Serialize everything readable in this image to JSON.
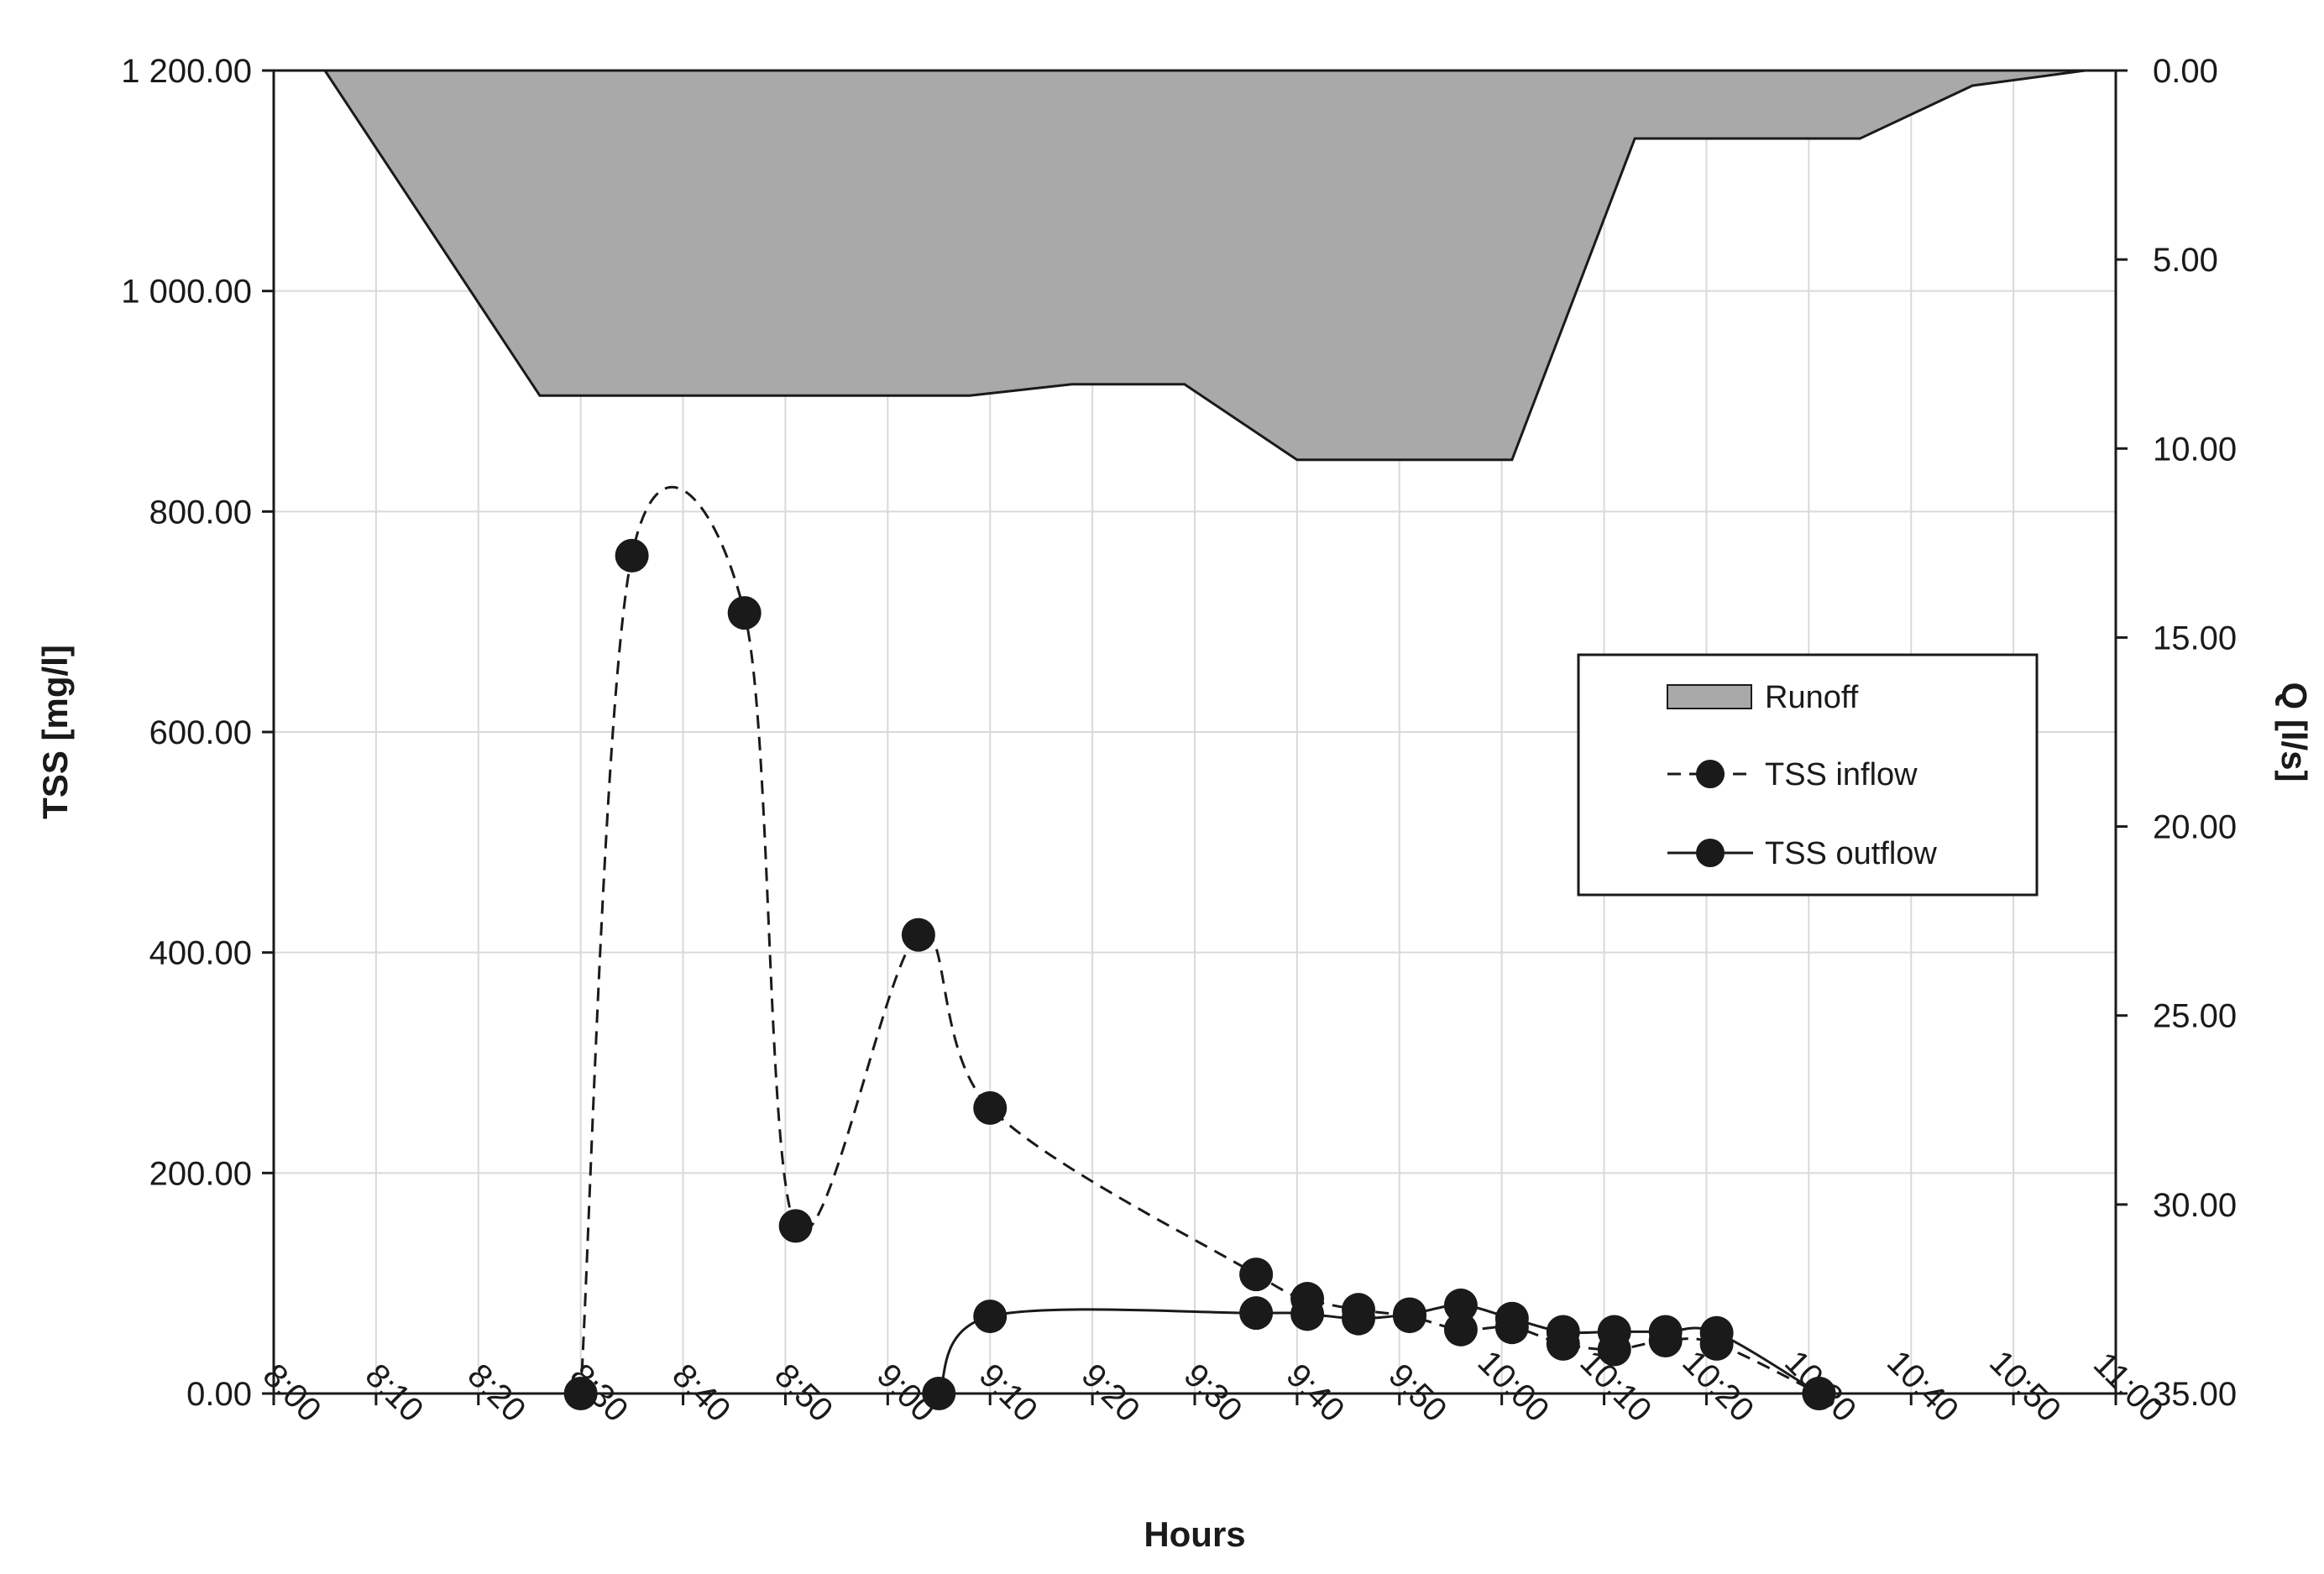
{
  "chart_data": {
    "type": "area+line",
    "title": "",
    "xlabel": "Hours",
    "ylabel": "TSS [mg/l]",
    "y2label": "Q [l/s]",
    "x_ticks": [
      "8:00",
      "8:10",
      "8:20",
      "8:30",
      "8:40",
      "8:50",
      "9:00",
      "9:10",
      "9:20",
      "9:30",
      "9:40",
      "9:50",
      "10:00",
      "10:10",
      "10:20",
      "10:30",
      "10:40",
      "10:50",
      "11:00"
    ],
    "xlim_minutes": [
      0,
      180
    ],
    "ylim": [
      0,
      1200
    ],
    "y_ticks": [
      "0.00",
      "200.00",
      "400.00",
      "600.00",
      "800.00",
      "1 000.00",
      "1 200.00"
    ],
    "y2lim": [
      0,
      35
    ],
    "y2_inverted": true,
    "y2_ticks": [
      "0.00",
      "5.00",
      "10.00",
      "15.00",
      "20.00",
      "25.00",
      "30.00",
      "35.00"
    ],
    "grid": true,
    "legend_position": "center-right",
    "colors": {
      "runoff_fill": "#a9a9a9",
      "line": "#1a1a1a",
      "marker": "#1a1a1a",
      "grid": "#d9d9d9"
    },
    "series": [
      {
        "name": "Runoff",
        "kind": "area",
        "axis": "y2",
        "x": [
          "8:05",
          "8:26",
          "8:47",
          "9:08",
          "9:18",
          "9:29",
          "9:40",
          "10:01",
          "10:13",
          "10:35",
          "10:46",
          "10:57",
          "11:00"
        ],
        "values": [
          0.0,
          8.6,
          8.6,
          8.6,
          8.3,
          8.3,
          10.3,
          10.3,
          1.8,
          1.8,
          0.4,
          0.0,
          0.0
        ]
      },
      {
        "name": "TSS inflow",
        "kind": "line",
        "style": "dashed",
        "axis": "y",
        "x": [
          "8:30",
          "8:35",
          "8:46",
          "8:51",
          "9:03",
          "9:10",
          "9:36",
          "9:41",
          "9:46",
          "9:51",
          "9:56",
          "10:01",
          "10:06",
          "10:11",
          "10:16",
          "10:21",
          "10:31"
        ],
        "values": [
          0,
          760,
          708,
          152,
          416,
          259,
          108,
          86,
          76,
          70,
          58,
          60,
          45,
          40,
          48,
          45,
          0
        ]
      },
      {
        "name": "TSS outflow",
        "kind": "line",
        "style": "solid",
        "axis": "y",
        "x": [
          "9:05",
          "9:10",
          "9:36",
          "9:41",
          "9:46",
          "9:51",
          "9:56",
          "10:01",
          "10:06",
          "10:11",
          "10:16",
          "10:21",
          "10:31"
        ],
        "values": [
          0,
          70,
          73,
          72,
          68,
          72,
          80,
          68,
          56,
          56,
          56,
          55,
          0
        ]
      }
    ]
  }
}
